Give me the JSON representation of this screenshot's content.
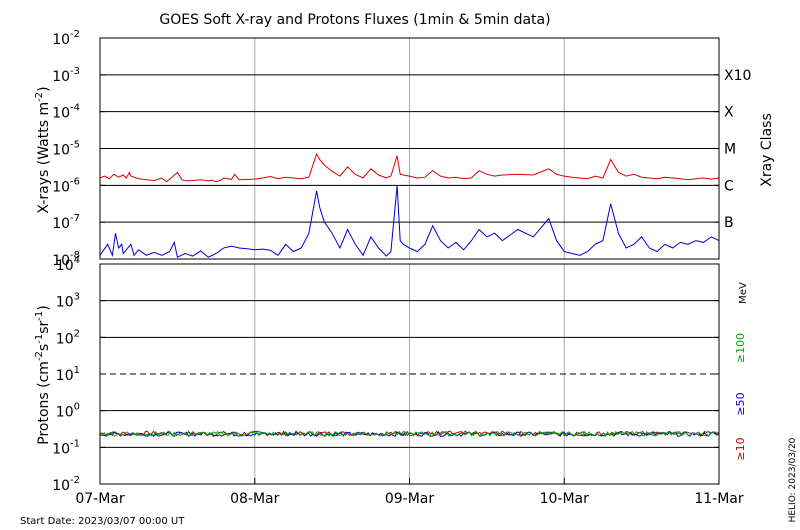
{
  "chart_data": [
    {
      "type": "line",
      "title": "GOES Soft X-ray and Protons Fluxes   (1min & 5min data)",
      "ylabel_main": "X-rays (Watts m",
      "ylabel_exp": "-2",
      "ylabel_close": ")",
      "yscale": "log",
      "ylim_exp": [
        -8,
        -2
      ],
      "y_ticks": [
        {
          "base": "10",
          "exp": "-2"
        },
        {
          "base": "10",
          "exp": "-3"
        },
        {
          "base": "10",
          "exp": "-4"
        },
        {
          "base": "10",
          "exp": "-5"
        },
        {
          "base": "10",
          "exp": "-6"
        },
        {
          "base": "10",
          "exp": "-7"
        },
        {
          "base": "10",
          "exp": "-8"
        }
      ],
      "class_axis_label": "Xray Class",
      "classes": [
        {
          "label": "X10",
          "exp": -3
        },
        {
          "label": "X",
          "exp": -4
        },
        {
          "label": "M",
          "exp": -5
        },
        {
          "label": "C",
          "exp": -6
        },
        {
          "label": "B",
          "exp": -7
        }
      ],
      "x_days": [
        "07-Mar",
        "08-Mar",
        "09-Mar",
        "10-Mar",
        "11-Mar"
      ],
      "series": [
        {
          "color": "#dd0000",
          "points": [
            [
              0,
              -5.8
            ],
            [
              0.03,
              -5.75
            ],
            [
              0.06,
              -5.82
            ],
            [
              0.09,
              -5.7
            ],
            [
              0.12,
              -5.78
            ],
            [
              0.15,
              -5.72
            ],
            [
              0.17,
              -5.8
            ],
            [
              0.19,
              -5.65
            ],
            [
              0.2,
              -5.75
            ],
            [
              0.25,
              -5.82
            ],
            [
              0.3,
              -5.85
            ],
            [
              0.35,
              -5.87
            ],
            [
              0.4,
              -5.8
            ],
            [
              0.43,
              -5.9
            ],
            [
              0.46,
              -5.8
            ],
            [
              0.5,
              -5.65
            ],
            [
              0.53,
              -5.85
            ],
            [
              0.56,
              -5.88
            ],
            [
              0.6,
              -5.87
            ],
            [
              0.65,
              -5.85
            ],
            [
              0.7,
              -5.88
            ],
            [
              0.72,
              -5.86
            ],
            [
              0.75,
              -5.9
            ],
            [
              0.78,
              -5.86
            ],
            [
              0.8,
              -5.8
            ],
            [
              0.85,
              -5.84
            ],
            [
              0.87,
              -5.7
            ],
            [
              0.9,
              -5.85
            ],
            [
              1.0,
              -5.83
            ],
            [
              1.05,
              -5.8
            ],
            [
              1.1,
              -5.76
            ],
            [
              1.15,
              -5.82
            ],
            [
              1.2,
              -5.78
            ],
            [
              1.25,
              -5.8
            ],
            [
              1.3,
              -5.82
            ],
            [
              1.35,
              -5.78
            ],
            [
              1.4,
              -5.15
            ],
            [
              1.42,
              -5.3
            ],
            [
              1.45,
              -5.45
            ],
            [
              1.5,
              -5.62
            ],
            [
              1.55,
              -5.75
            ],
            [
              1.6,
              -5.5
            ],
            [
              1.65,
              -5.7
            ],
            [
              1.7,
              -5.8
            ],
            [
              1.75,
              -5.55
            ],
            [
              1.8,
              -5.72
            ],
            [
              1.85,
              -5.8
            ],
            [
              1.88,
              -5.75
            ],
            [
              1.92,
              -5.2
            ],
            [
              1.94,
              -5.7
            ],
            [
              1.96,
              -5.72
            ],
            [
              2.0,
              -5.75
            ],
            [
              2.05,
              -5.8
            ],
            [
              2.1,
              -5.78
            ],
            [
              2.15,
              -5.6
            ],
            [
              2.2,
              -5.75
            ],
            [
              2.25,
              -5.8
            ],
            [
              2.3,
              -5.78
            ],
            [
              2.35,
              -5.82
            ],
            [
              2.4,
              -5.8
            ],
            [
              2.45,
              -5.6
            ],
            [
              2.5,
              -5.7
            ],
            [
              2.55,
              -5.75
            ],
            [
              2.6,
              -5.72
            ],
            [
              2.7,
              -5.7
            ],
            [
              2.8,
              -5.72
            ],
            [
              2.9,
              -5.55
            ],
            [
              2.95,
              -5.7
            ],
            [
              3.0,
              -5.75
            ],
            [
              3.05,
              -5.78
            ],
            [
              3.1,
              -5.8
            ],
            [
              3.15,
              -5.82
            ],
            [
              3.2,
              -5.75
            ],
            [
              3.25,
              -5.8
            ],
            [
              3.3,
              -5.3
            ],
            [
              3.35,
              -5.65
            ],
            [
              3.4,
              -5.75
            ],
            [
              3.45,
              -5.7
            ],
            [
              3.5,
              -5.78
            ],
            [
              3.55,
              -5.8
            ],
            [
              3.6,
              -5.82
            ],
            [
              3.65,
              -5.78
            ],
            [
              3.7,
              -5.8
            ],
            [
              3.75,
              -5.82
            ],
            [
              3.8,
              -5.85
            ],
            [
              3.85,
              -5.82
            ],
            [
              3.9,
              -5.8
            ],
            [
              3.95,
              -5.83
            ],
            [
              4.0,
              -5.8
            ]
          ]
        },
        {
          "color": "#0000cc",
          "points": [
            [
              0,
              -7.9
            ],
            [
              0.05,
              -7.6
            ],
            [
              0.08,
              -7.9
            ],
            [
              0.1,
              -7.3
            ],
            [
              0.12,
              -7.7
            ],
            [
              0.14,
              -7.6
            ],
            [
              0.15,
              -7.85
            ],
            [
              0.2,
              -7.6
            ],
            [
              0.22,
              -7.9
            ],
            [
              0.25,
              -7.75
            ],
            [
              0.3,
              -7.9
            ],
            [
              0.35,
              -7.82
            ],
            [
              0.4,
              -7.9
            ],
            [
              0.45,
              -7.8
            ],
            [
              0.48,
              -7.55
            ],
            [
              0.5,
              -7.95
            ],
            [
              0.55,
              -7.85
            ],
            [
              0.6,
              -7.92
            ],
            [
              0.65,
              -7.78
            ],
            [
              0.7,
              -7.95
            ],
            [
              0.75,
              -7.85
            ],
            [
              0.8,
              -7.7
            ],
            [
              0.85,
              -7.65
            ],
            [
              0.9,
              -7.7
            ],
            [
              0.95,
              -7.72
            ],
            [
              1.0,
              -7.75
            ],
            [
              1.05,
              -7.73
            ],
            [
              1.1,
              -7.76
            ],
            [
              1.15,
              -7.9
            ],
            [
              1.2,
              -7.6
            ],
            [
              1.25,
              -7.8
            ],
            [
              1.3,
              -7.7
            ],
            [
              1.35,
              -7.3
            ],
            [
              1.4,
              -6.15
            ],
            [
              1.42,
              -6.6
            ],
            [
              1.45,
              -7.0
            ],
            [
              1.5,
              -7.3
            ],
            [
              1.55,
              -7.7
            ],
            [
              1.6,
              -7.2
            ],
            [
              1.65,
              -7.6
            ],
            [
              1.7,
              -7.9
            ],
            [
              1.75,
              -7.4
            ],
            [
              1.8,
              -7.7
            ],
            [
              1.85,
              -7.92
            ],
            [
              1.88,
              -7.8
            ],
            [
              1.92,
              -6.0
            ],
            [
              1.94,
              -7.5
            ],
            [
              1.96,
              -7.6
            ],
            [
              2.0,
              -7.7
            ],
            [
              2.05,
              -7.8
            ],
            [
              2.1,
              -7.6
            ],
            [
              2.15,
              -7.1
            ],
            [
              2.2,
              -7.5
            ],
            [
              2.25,
              -7.7
            ],
            [
              2.3,
              -7.55
            ],
            [
              2.35,
              -7.75
            ],
            [
              2.4,
              -7.5
            ],
            [
              2.45,
              -7.2
            ],
            [
              2.5,
              -7.4
            ],
            [
              2.55,
              -7.3
            ],
            [
              2.6,
              -7.5
            ],
            [
              2.7,
              -7.2
            ],
            [
              2.8,
              -7.4
            ],
            [
              2.9,
              -6.9
            ],
            [
              2.95,
              -7.5
            ],
            [
              3.0,
              -7.8
            ],
            [
              3.05,
              -7.85
            ],
            [
              3.1,
              -7.9
            ],
            [
              3.15,
              -7.8
            ],
            [
              3.2,
              -7.6
            ],
            [
              3.25,
              -7.5
            ],
            [
              3.3,
              -6.5
            ],
            [
              3.35,
              -7.3
            ],
            [
              3.4,
              -7.7
            ],
            [
              3.45,
              -7.6
            ],
            [
              3.5,
              -7.4
            ],
            [
              3.55,
              -7.7
            ],
            [
              3.6,
              -7.8
            ],
            [
              3.65,
              -7.6
            ],
            [
              3.7,
              -7.7
            ],
            [
              3.75,
              -7.55
            ],
            [
              3.8,
              -7.6
            ],
            [
              3.85,
              -7.5
            ],
            [
              3.9,
              -7.55
            ],
            [
              3.95,
              -7.4
            ],
            [
              4.0,
              -7.5
            ]
          ]
        }
      ]
    },
    {
      "type": "line",
      "ylabel_main": "Protons (cm",
      "ylabel_exp1": "-2",
      "ylabel_mid": "s",
      "ylabel_exp2": "-1",
      "ylabel_mid2": "sr",
      "ylabel_exp3": "-1",
      "ylabel_close": ")",
      "yscale": "log",
      "ylim_exp": [
        -2,
        4
      ],
      "y_ticks": [
        {
          "base": "10",
          "exp": "4"
        },
        {
          "base": "10",
          "exp": "3"
        },
        {
          "base": "10",
          "exp": "2"
        },
        {
          "base": "10",
          "exp": "1"
        },
        {
          "base": "10",
          "exp": "0"
        },
        {
          "base": "10",
          "exp": "-1"
        },
        {
          "base": "10",
          "exp": "-2"
        }
      ],
      "threshold_exp": 1,
      "energy_unit": "MeV",
      "legend": [
        {
          "label": "≥100",
          "color": "#00aa00"
        },
        {
          "label": "≥50",
          "color": "#0000cc"
        },
        {
          "label": "≥10",
          "color": "#cc0000"
        }
      ],
      "series": [
        {
          "color": "#cc0000",
          "level_exp": -0.62
        },
        {
          "color": "#0000cc",
          "level_exp": -0.64
        },
        {
          "color": "#00aa00",
          "level_exp": -0.63
        }
      ]
    }
  ],
  "x_labels": [
    "07-Mar",
    "08-Mar",
    "09-Mar",
    "10-Mar",
    "11-Mar"
  ],
  "footer": {
    "start_date": "Start Date: 2023/03/07 00:00 UT",
    "stamp": "HELIO: 2023/03/20"
  }
}
